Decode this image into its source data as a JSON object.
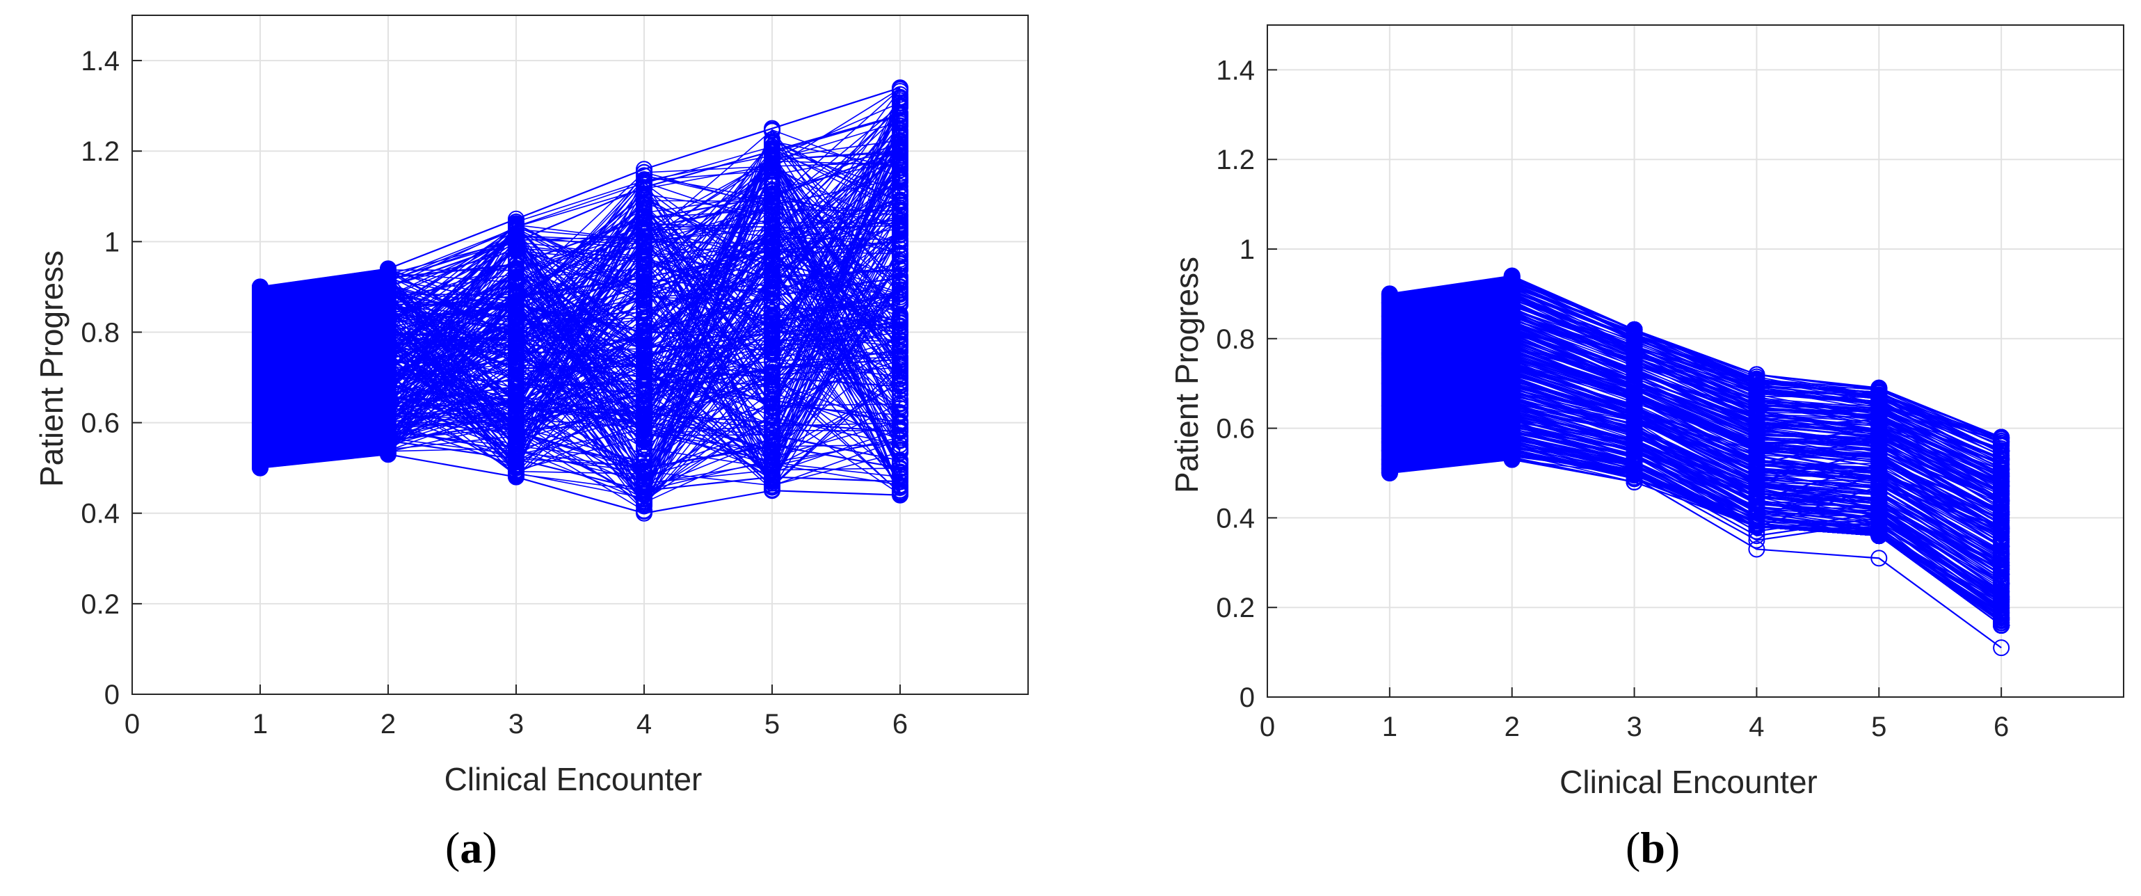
{
  "chart_data": [
    {
      "type": "line",
      "panel_label": "a",
      "xlabel": "Clinical Encounter",
      "ylabel": "Patient Progress",
      "xlim": [
        0,
        7
      ],
      "ylim": [
        0,
        1.5
      ],
      "xticks": [
        0,
        1,
        2,
        3,
        4,
        5,
        6
      ],
      "yticks": [
        0,
        0.2,
        0.4,
        0.6,
        0.8,
        1,
        1.2,
        1.4
      ],
      "grid": true,
      "marker": "circle",
      "color": "#0000ff",
      "x": [
        1,
        2,
        3,
        4,
        5,
        6
      ],
      "series_count": 300,
      "range_by_encounter": {
        "min": [
          0.5,
          0.53,
          0.48,
          0.4,
          0.45,
          0.44
        ],
        "max": [
          0.9,
          0.94,
          1.05,
          1.16,
          1.25,
          1.34
        ]
      },
      "series": [
        {
          "values": [
            0.5,
            0.53,
            0.48,
            0.4,
            0.45,
            0.44
          ]
        },
        {
          "values": [
            0.55,
            0.56,
            0.52,
            0.45,
            0.48,
            0.47
          ]
        },
        {
          "values": [
            0.6,
            0.62,
            0.7,
            0.8,
            0.95,
            1.1
          ]
        },
        {
          "values": [
            0.9,
            0.94,
            1.05,
            1.16,
            1.25,
            1.34
          ]
        },
        {
          "values": [
            0.85,
            0.9,
            1.0,
            1.12,
            1.2,
            1.28
          ]
        },
        {
          "values": [
            0.7,
            0.74,
            0.82,
            0.9,
            1.0,
            1.05
          ]
        },
        {
          "values": [
            0.65,
            0.66,
            0.58,
            0.5,
            0.55,
            0.5
          ]
        },
        {
          "values": [
            0.75,
            0.8,
            0.78,
            0.72,
            0.7,
            0.68
          ]
        },
        {
          "values": [
            0.8,
            0.85,
            0.88,
            0.92,
            0.98,
            1.0
          ]
        },
        {
          "values": [
            0.58,
            0.6,
            0.65,
            0.62,
            0.6,
            0.58
          ]
        },
        {
          "values": [
            0.72,
            0.76,
            0.7,
            0.66,
            0.72,
            0.76
          ]
        },
        {
          "values": [
            0.62,
            0.64,
            0.68,
            0.75,
            0.8,
            0.82
          ]
        },
        {
          "values": [
            0.88,
            0.92,
            0.95,
            1.05,
            1.1,
            1.2
          ]
        },
        {
          "values": [
            0.52,
            0.56,
            0.6,
            0.68,
            0.72,
            0.74
          ]
        },
        {
          "values": [
            0.68,
            0.7,
            0.74,
            0.7,
            0.65,
            0.6
          ]
        },
        {
          "values": [
            0.78,
            0.82,
            0.86,
            0.8,
            0.88,
            0.92
          ]
        }
      ]
    },
    {
      "type": "line",
      "panel_label": "b",
      "xlabel": "Clinical Encounter",
      "ylabel": "Patient Progress",
      "xlim": [
        0,
        7
      ],
      "ylim": [
        0,
        1.5
      ],
      "xticks": [
        0,
        1,
        2,
        3,
        4,
        5,
        6
      ],
      "yticks": [
        0,
        0.2,
        0.4,
        0.6,
        0.8,
        1,
        1.2,
        1.4
      ],
      "grid": true,
      "marker": "circle",
      "color": "#0000ff",
      "x": [
        1,
        2,
        3,
        4,
        5,
        6
      ],
      "series_count": 300,
      "range_by_encounter": {
        "min": [
          0.5,
          0.53,
          0.48,
          0.33,
          0.31,
          0.11
        ],
        "max": [
          0.9,
          0.94,
          0.82,
          0.72,
          0.69,
          0.58
        ]
      },
      "series": [
        {
          "values": [
            0.9,
            0.94,
            0.82,
            0.72,
            0.69,
            0.58
          ]
        },
        {
          "values": [
            0.88,
            0.92,
            0.8,
            0.7,
            0.68,
            0.56
          ]
        },
        {
          "values": [
            0.85,
            0.9,
            0.78,
            0.68,
            0.66,
            0.54
          ]
        },
        {
          "values": [
            0.8,
            0.86,
            0.75,
            0.64,
            0.64,
            0.52
          ]
        },
        {
          "values": [
            0.75,
            0.82,
            0.72,
            0.6,
            0.62,
            0.5
          ]
        },
        {
          "values": [
            0.7,
            0.78,
            0.68,
            0.56,
            0.6,
            0.48
          ]
        },
        {
          "values": [
            0.65,
            0.74,
            0.65,
            0.52,
            0.58,
            0.46
          ]
        },
        {
          "values": [
            0.6,
            0.68,
            0.6,
            0.48,
            0.55,
            0.44
          ]
        },
        {
          "values": [
            0.55,
            0.62,
            0.55,
            0.44,
            0.52,
            0.42
          ]
        },
        {
          "values": [
            0.5,
            0.55,
            0.5,
            0.4,
            0.5,
            0.4
          ]
        },
        {
          "values": [
            0.5,
            0.53,
            0.48,
            0.38,
            0.47,
            0.38
          ]
        },
        {
          "values": [
            0.52,
            0.6,
            0.52,
            0.37,
            0.41,
            0.22
          ]
        },
        {
          "values": [
            0.55,
            0.62,
            0.51,
            0.36,
            0.4,
            0.21
          ]
        },
        {
          "values": [
            0.53,
            0.58,
            0.5,
            0.35,
            0.39,
            0.2
          ]
        },
        {
          "values": [
            0.51,
            0.56,
            0.49,
            0.33,
            0.31,
            0.11
          ]
        }
      ]
    }
  ]
}
